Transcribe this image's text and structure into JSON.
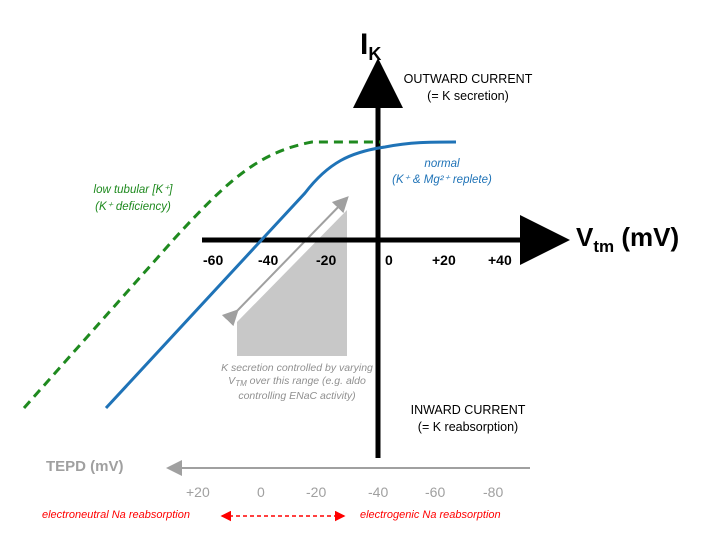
{
  "axes": {
    "y_label_main": "I",
    "y_label_sub": "K",
    "x_label_main": "V",
    "x_label_sub": "tm",
    "x_label_unit": " (mV)",
    "x_ticks": [
      "-60",
      "-40",
      "-20",
      "0",
      "+20",
      "+40"
    ]
  },
  "quadrants": {
    "outward_line1": "OUTWARD CURRENT",
    "outward_line2": "(= K secretion)",
    "inward_line1": "INWARD CURRENT",
    "inward_line2": "(= K reabsorption)"
  },
  "curves": {
    "normal_line1": "normal",
    "normal_line2": "(K⁺ & Mg²⁺ replete)",
    "low_line1": "low tubular [K⁺]",
    "low_line2": "(K⁺ deficiency)"
  },
  "annotation": {
    "line1": "K secretion controlled by varying",
    "line2": "V",
    "line2_sub": "TM",
    "line2_rest": " over this range (e.g. aldo",
    "line3": "controlling ENaC activity)"
  },
  "tepd": {
    "label": "TEPD (mV)",
    "ticks": [
      "+20",
      "0",
      "-20",
      "-40",
      "-60",
      "-80"
    ]
  },
  "bottom": {
    "left": "electroneutral Na reabsorption",
    "right": "electrogenic Na reabsorption"
  },
  "colors": {
    "normal": "#1f73b7",
    "low": "#1f8a1f",
    "gray": "#a0a0a0",
    "red": "#ff0000"
  }
}
